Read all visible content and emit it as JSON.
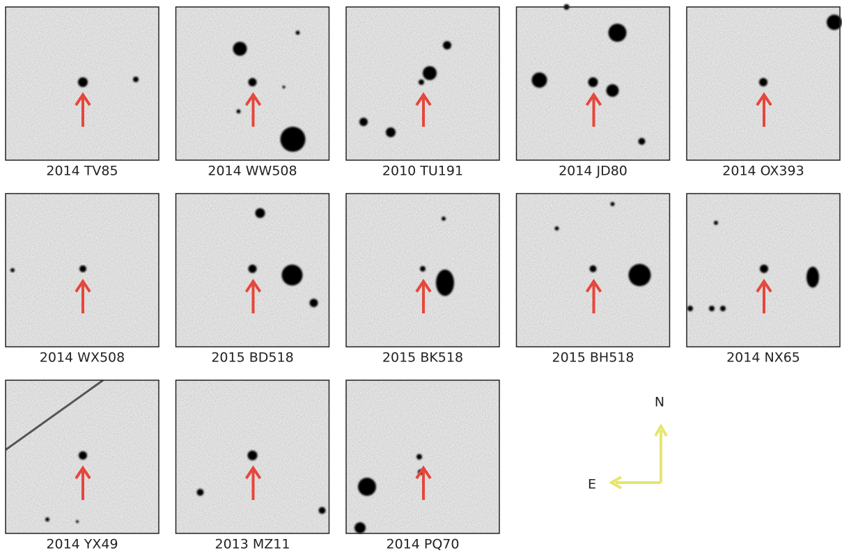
{
  "panels": [
    {
      "label": "2014 TV85"
    },
    {
      "label": "2014 WW508"
    },
    {
      "label": "2010 TU191"
    },
    {
      "label": "2014 JD80"
    },
    {
      "label": "2014 OX393"
    },
    {
      "label": "2014 WX508"
    },
    {
      "label": "2015 BD518"
    },
    {
      "label": "2015 BK518"
    },
    {
      "label": "2015 BH518"
    },
    {
      "label": "2014 NX65"
    },
    {
      "label": "2014 YX49"
    },
    {
      "label": "2013 MZ11"
    },
    {
      "label": "2014 PQ70"
    }
  ],
  "compass": {
    "north": "N",
    "east": "E"
  }
}
